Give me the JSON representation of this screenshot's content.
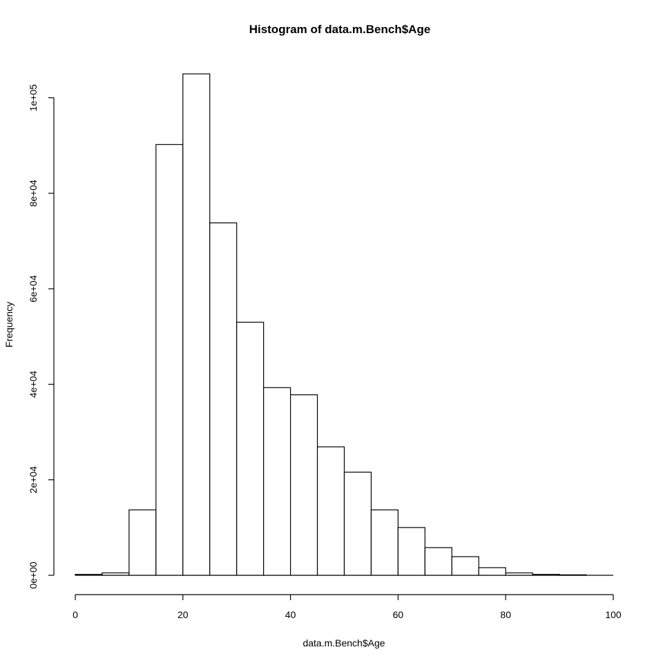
{
  "chart_data": {
    "type": "bar",
    "title": "Histogram of data.m.Bench$Age",
    "xlabel": "data.m.Bench$Age",
    "ylabel": "Frequency",
    "bins": [
      [
        0,
        5
      ],
      [
        5,
        10
      ],
      [
        10,
        15
      ],
      [
        15,
        20
      ],
      [
        20,
        25
      ],
      [
        25,
        30
      ],
      [
        30,
        35
      ],
      [
        35,
        40
      ],
      [
        40,
        45
      ],
      [
        45,
        50
      ],
      [
        50,
        55
      ],
      [
        55,
        60
      ],
      [
        60,
        65
      ],
      [
        65,
        70
      ],
      [
        70,
        75
      ],
      [
        75,
        80
      ],
      [
        80,
        85
      ],
      [
        85,
        90
      ],
      [
        90,
        95
      ]
    ],
    "values": [
      200,
      500,
      13700,
      90200,
      105000,
      73800,
      53000,
      39300,
      37800,
      26900,
      21600,
      13700,
      10000,
      5800,
      3900,
      1600,
      500,
      200,
      100
    ],
    "xlim": [
      0,
      100
    ],
    "ylim": [
      0,
      105000
    ],
    "x_ticks": [
      0,
      20,
      40,
      60,
      80,
      100
    ],
    "x_tick_labels": [
      "0",
      "20",
      "40",
      "60",
      "80",
      "100"
    ],
    "y_ticks": [
      0,
      20000,
      40000,
      60000,
      80000,
      100000
    ],
    "y_tick_labels": [
      "0e+00",
      "2e+04",
      "4e+04",
      "6e+04",
      "8e+04",
      "1e+05"
    ],
    "grid": false
  }
}
